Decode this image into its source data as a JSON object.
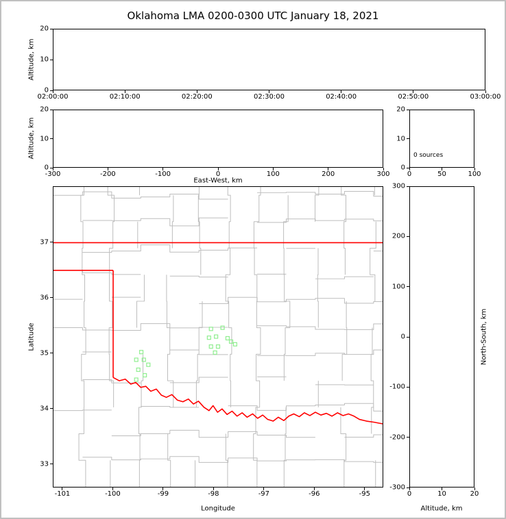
{
  "title": "Oklahoma LMA 0200-0300 UTC January 18, 2021",
  "chart_data": [
    {
      "id": "time_height_panel",
      "type": "scatter",
      "xlabel": "",
      "ylabel": "Altitude, km",
      "xticks": [
        "02:00:00",
        "02:10:00",
        "02:20:00",
        "02:30:00",
        "02:40:00",
        "02:50:00",
        "03:00:00"
      ],
      "ylim": [
        0,
        20
      ],
      "yticks": [
        0,
        10,
        20
      ],
      "points": []
    },
    {
      "id": "east_west_height_panel",
      "type": "scatter",
      "xlabel": "East-West, km",
      "ylabel": "Altitude, km",
      "xlim": [
        -300,
        300
      ],
      "xticks": [
        -300,
        -200,
        -100,
        0,
        100,
        200,
        300
      ],
      "ylim": [
        0,
        20
      ],
      "yticks": [
        0,
        10,
        20
      ],
      "points": []
    },
    {
      "id": "altitude_histogram_panel",
      "type": "line",
      "annotation": "0 sources",
      "xlim": [
        0,
        100
      ],
      "xticks": [
        0,
        50,
        100
      ],
      "ylim": [
        0,
        20
      ],
      "yticks": [
        0,
        10,
        20
      ],
      "points": []
    },
    {
      "id": "plan_view_map_panel",
      "type": "scatter",
      "xlabel": "Longitude",
      "ylabel": "Latitude",
      "xlim": [
        -101.19,
        -94.63
      ],
      "xticks": [
        -101,
        -100,
        -99,
        -98,
        -97,
        -96,
        -95
      ],
      "ylim": [
        32.58,
        38.01
      ],
      "yticks": [
        33,
        34,
        35,
        36,
        37
      ],
      "marker": "square",
      "colors": {
        "state_border": "#ff0000",
        "county_lines": "#bdbdbd",
        "stations": "#90ee90"
      },
      "stations": [
        [
          -99.44,
          35.02
        ],
        [
          -99.54,
          34.88
        ],
        [
          -99.39,
          34.88
        ],
        [
          -99.3,
          34.79
        ],
        [
          -99.5,
          34.7
        ],
        [
          -99.37,
          34.6
        ],
        [
          -99.54,
          34.52
        ],
        [
          -98.05,
          35.44
        ],
        [
          -97.82,
          35.46
        ],
        [
          -98.09,
          35.28
        ],
        [
          -97.95,
          35.3
        ],
        [
          -97.72,
          35.27
        ],
        [
          -97.65,
          35.21
        ],
        [
          -98.05,
          35.12
        ],
        [
          -97.91,
          35.12
        ],
        [
          -97.57,
          35.16
        ],
        [
          -97.97,
          35.01
        ]
      ],
      "state_border": [
        [
          [
            -101.19,
            37.0
          ],
          [
            -94.63,
            37.0
          ]
        ],
        [
          [
            -101.19,
            36.5
          ],
          [
            -100.0,
            36.5
          ]
        ],
        [
          [
            -100.0,
            36.5
          ],
          [
            -100.0,
            34.56
          ]
        ]
      ],
      "red_river": [
        [
          -100.0,
          34.56
        ],
        [
          -99.88,
          34.5
        ],
        [
          -99.76,
          34.53
        ],
        [
          -99.65,
          34.44
        ],
        [
          -99.55,
          34.47
        ],
        [
          -99.45,
          34.38
        ],
        [
          -99.35,
          34.4
        ],
        [
          -99.25,
          34.31
        ],
        [
          -99.14,
          34.35
        ],
        [
          -99.04,
          34.24
        ],
        [
          -98.94,
          34.2
        ],
        [
          -98.83,
          34.25
        ],
        [
          -98.72,
          34.15
        ],
        [
          -98.61,
          34.12
        ],
        [
          -98.5,
          34.17
        ],
        [
          -98.4,
          34.08
        ],
        [
          -98.3,
          34.13
        ],
        [
          -98.19,
          34.02
        ],
        [
          -98.09,
          33.96
        ],
        [
          -98.01,
          34.05
        ],
        [
          -97.92,
          33.93
        ],
        [
          -97.83,
          33.99
        ],
        [
          -97.73,
          33.89
        ],
        [
          -97.63,
          33.95
        ],
        [
          -97.53,
          33.86
        ],
        [
          -97.43,
          33.92
        ],
        [
          -97.33,
          33.84
        ],
        [
          -97.22,
          33.9
        ],
        [
          -97.12,
          33.82
        ],
        [
          -97.02,
          33.88
        ],
        [
          -96.92,
          33.8
        ],
        [
          -96.81,
          33.77
        ],
        [
          -96.71,
          33.84
        ],
        [
          -96.6,
          33.78
        ],
        [
          -96.5,
          33.86
        ],
        [
          -96.4,
          33.9
        ],
        [
          -96.29,
          33.85
        ],
        [
          -96.19,
          33.92
        ],
        [
          -96.08,
          33.87
        ],
        [
          -95.97,
          33.93
        ],
        [
          -95.86,
          33.88
        ],
        [
          -95.75,
          33.91
        ],
        [
          -95.64,
          33.86
        ],
        [
          -95.53,
          33.92
        ],
        [
          -95.42,
          33.87
        ],
        [
          -95.31,
          33.9
        ],
        [
          -95.2,
          33.86
        ],
        [
          -95.09,
          33.8
        ],
        [
          -94.95,
          33.77
        ],
        [
          -94.8,
          33.75
        ],
        [
          -94.63,
          33.72
        ]
      ]
    },
    {
      "id": "north_south_height_panel",
      "type": "scatter",
      "xlabel": "Altitude, km",
      "ylabel": "North-South, km",
      "xlim": [
        0,
        20
      ],
      "xticks": [
        0,
        10,
        20
      ],
      "ylim": [
        -300,
        300
      ],
      "yticks": [
        300,
        200,
        100,
        0,
        -100,
        -200,
        -300
      ],
      "points": []
    }
  ]
}
